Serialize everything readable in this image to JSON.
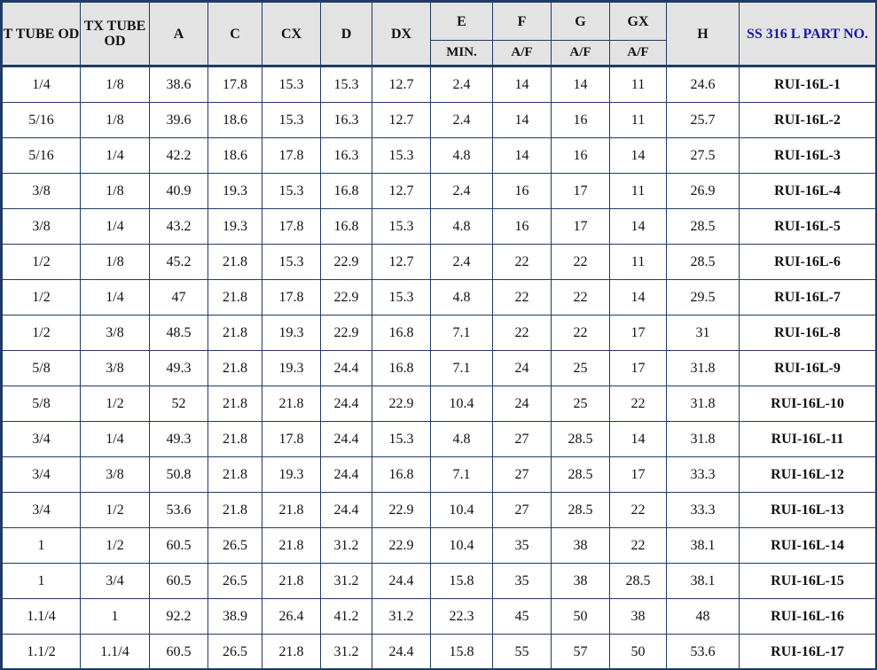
{
  "table": {
    "headers": {
      "t_tube_od": "T TUBE OD",
      "tx_tube_od": "TX TUBE OD",
      "a": "A",
      "c": "C",
      "cx": "CX",
      "d": "D",
      "dx": "DX",
      "e": "E",
      "f": "F",
      "g": "G",
      "gx": "GX",
      "h": "H",
      "part_no": "SS 316 L PART NO.",
      "e_sub": "MIN.",
      "f_sub": "A/F",
      "g_sub": "A/F",
      "gx_sub": "A/F"
    },
    "rows": [
      [
        "1/4",
        "1/8",
        "38.6",
        "17.8",
        "15.3",
        "15.3",
        "12.7",
        "2.4",
        "14",
        "14",
        "11",
        "24.6",
        "RUI-16L-1"
      ],
      [
        "5/16",
        "1/8",
        "39.6",
        "18.6",
        "15.3",
        "16.3",
        "12.7",
        "2.4",
        "14",
        "16",
        "11",
        "25.7",
        "RUI-16L-2"
      ],
      [
        "5/16",
        "1/4",
        "42.2",
        "18.6",
        "17.8",
        "16.3",
        "15.3",
        "4.8",
        "14",
        "16",
        "14",
        "27.5",
        "RUI-16L-3"
      ],
      [
        "3/8",
        "1/8",
        "40.9",
        "19.3",
        "15.3",
        "16.8",
        "12.7",
        "2.4",
        "16",
        "17",
        "11",
        "26.9",
        "RUI-16L-4"
      ],
      [
        "3/8",
        "1/4",
        "43.2",
        "19.3",
        "17.8",
        "16.8",
        "15.3",
        "4.8",
        "16",
        "17",
        "14",
        "28.5",
        "RUI-16L-5"
      ],
      [
        "1/2",
        "1/8",
        "45.2",
        "21.8",
        "15.3",
        "22.9",
        "12.7",
        "2.4",
        "22",
        "22",
        "11",
        "28.5",
        "RUI-16L-6"
      ],
      [
        "1/2",
        "1/4",
        "47",
        "21.8",
        "17.8",
        "22.9",
        "15.3",
        "4.8",
        "22",
        "22",
        "14",
        "29.5",
        "RUI-16L-7"
      ],
      [
        "1/2",
        "3/8",
        "48.5",
        "21.8",
        "19.3",
        "22.9",
        "16.8",
        "7.1",
        "22",
        "22",
        "17",
        "31",
        "RUI-16L-8"
      ],
      [
        "5/8",
        "3/8",
        "49.3",
        "21.8",
        "19.3",
        "24.4",
        "16.8",
        "7.1",
        "24",
        "25",
        "17",
        "31.8",
        "RUI-16L-9"
      ],
      [
        "5/8",
        "1/2",
        "52",
        "21.8",
        "21.8",
        "24.4",
        "22.9",
        "10.4",
        "24",
        "25",
        "22",
        "31.8",
        "RUI-16L-10"
      ],
      [
        "3/4",
        "1/4",
        "49.3",
        "21.8",
        "17.8",
        "24.4",
        "15.3",
        "4.8",
        "27",
        "28.5",
        "14",
        "31.8",
        "RUI-16L-11"
      ],
      [
        "3/4",
        "3/8",
        "50.8",
        "21.8",
        "19.3",
        "24.4",
        "16.8",
        "7.1",
        "27",
        "28.5",
        "17",
        "33.3",
        "RUI-16L-12"
      ],
      [
        "3/4",
        "1/2",
        "53.6",
        "21.8",
        "21.8",
        "24.4",
        "22.9",
        "10.4",
        "27",
        "28.5",
        "22",
        "33.3",
        "RUI-16L-13"
      ],
      [
        "1",
        "1/2",
        "60.5",
        "26.5",
        "21.8",
        "31.2",
        "22.9",
        "10.4",
        "35",
        "38",
        "22",
        "38.1",
        "RUI-16L-14"
      ],
      [
        "1",
        "3/4",
        "60.5",
        "26.5",
        "21.8",
        "31.2",
        "24.4",
        "15.8",
        "35",
        "38",
        "28.5",
        "38.1",
        "RUI-16L-15"
      ],
      [
        "1.1/4",
        "1",
        "92.2",
        "38.9",
        "26.4",
        "41.2",
        "31.2",
        "22.3",
        "45",
        "50",
        "38",
        "48",
        "RUI-16L-16"
      ],
      [
        "1.1/2",
        "1.1/4",
        "60.5",
        "26.5",
        "21.8",
        "31.2",
        "24.4",
        "15.8",
        "55",
        "57",
        "50",
        "53.6",
        "RUI-16L-17"
      ]
    ]
  },
  "colors": {
    "border": "#1f3b66",
    "header_bg": "#e3e3e3",
    "part_header_text": "#1a1aa6"
  }
}
